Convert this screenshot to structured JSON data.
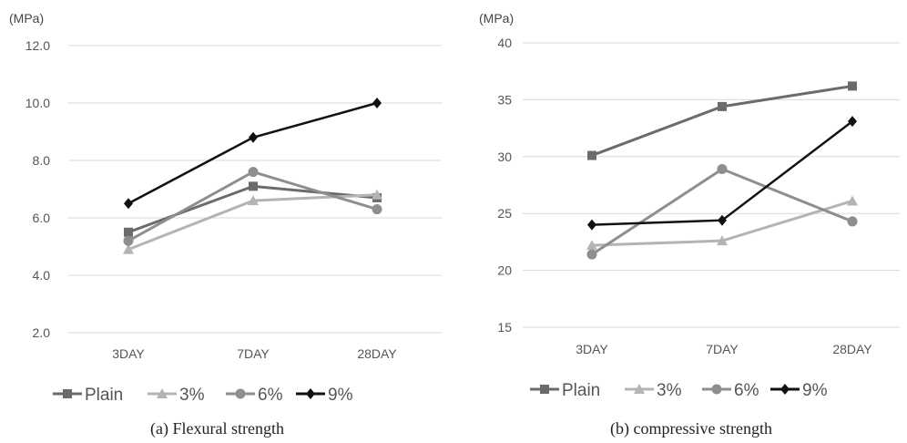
{
  "chart_data": [
    {
      "type": "line",
      "title": "(a) Flexural strength",
      "unit_label": "(MPa)",
      "categories": [
        "3DAY",
        "7DAY",
        "28DAY"
      ],
      "ylim": [
        2.0,
        12.0
      ],
      "yticks": [
        "2.0",
        "4.0",
        "6.0",
        "8.0",
        "10.0",
        "12.0"
      ],
      "grid": true,
      "legend_position": "bottom",
      "series": [
        {
          "name": "Plain",
          "marker": "square",
          "color": "#6b6b6b",
          "values": [
            5.5,
            7.1,
            6.7
          ]
        },
        {
          "name": "3%",
          "marker": "triangle",
          "color": "#b4b4b4",
          "values": [
            4.9,
            6.6,
            6.8
          ]
        },
        {
          "name": "6%",
          "marker": "circle",
          "color": "#8e8e8e",
          "values": [
            5.2,
            7.6,
            6.3
          ]
        },
        {
          "name": "9%",
          "marker": "diamond",
          "color": "#111111",
          "values": [
            6.5,
            8.8,
            10.0
          ]
        }
      ]
    },
    {
      "type": "line",
      "title": "(b) compressive strength",
      "unit_label": "(MPa)",
      "categories": [
        "3DAY",
        "7DAY",
        "28DAY"
      ],
      "ylim": [
        15,
        40
      ],
      "yticks": [
        "15",
        "20",
        "25",
        "30",
        "35",
        "40"
      ],
      "grid": true,
      "legend_position": "bottom",
      "series": [
        {
          "name": "Plain",
          "marker": "square",
          "color": "#6b6b6b",
          "values": [
            30.1,
            34.4,
            36.2
          ]
        },
        {
          "name": "3%",
          "marker": "triangle",
          "color": "#b4b4b4",
          "values": [
            22.2,
            22.6,
            26.1
          ]
        },
        {
          "name": "6%",
          "marker": "circle",
          "color": "#8e8e8e",
          "values": [
            21.4,
            28.9,
            24.3
          ]
        },
        {
          "name": "9%",
          "marker": "diamond",
          "color": "#111111",
          "values": [
            24.0,
            24.4,
            33.1
          ]
        }
      ]
    }
  ]
}
